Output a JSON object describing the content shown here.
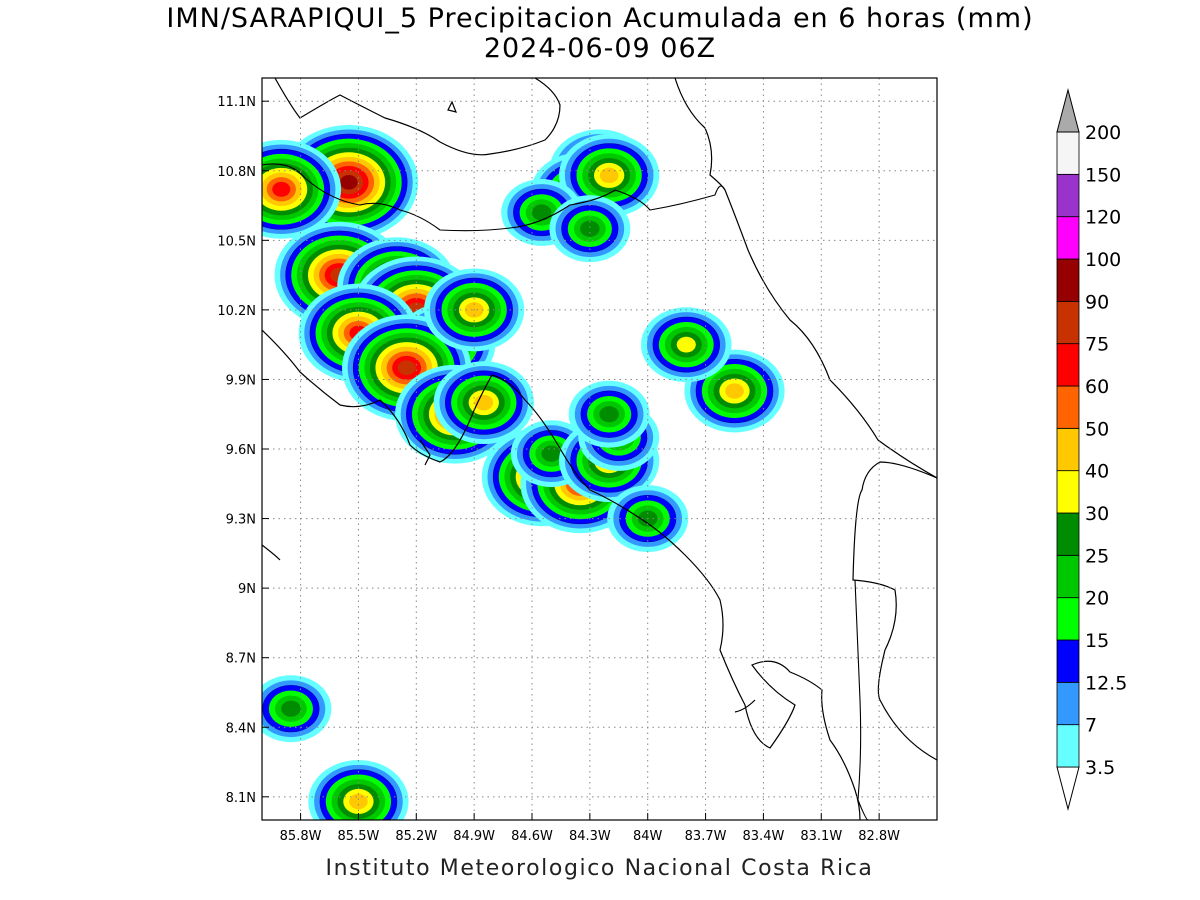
{
  "title": {
    "line1": "IMN/SARAPIQUI_5 Precipitacion Acumulada en 6 horas (mm)",
    "line2": "2024-06-09 06Z"
  },
  "footer": "Instituto Meteorologico Nacional Costa Rica",
  "map": {
    "lon_range": [
      -86.0,
      -82.5
    ],
    "lat_range": [
      8.0,
      11.2
    ],
    "lat_labels": [
      "11.1N",
      "10.8N",
      "10.5N",
      "10.2N",
      "9.9N",
      "9.6N",
      "9.3N",
      "9N",
      "8.7N",
      "8.4N",
      "8.1N"
    ],
    "lon_labels": [
      "85.8W",
      "85.5W",
      "85.2W",
      "84.9W",
      "84.6W",
      "84.3W",
      "84W",
      "83.7W",
      "83.4W",
      "83.1W",
      "82.8W"
    ],
    "grid": "dotted"
  },
  "colorbar": {
    "levels": [
      "3.5",
      "7",
      "12.5",
      "15",
      "20",
      "25",
      "30",
      "40",
      "50",
      "60",
      "75",
      "90",
      "100",
      "120",
      "150",
      "200"
    ],
    "colors": [
      "#66ffff",
      "#3399ff",
      "#0000ff",
      "#00ff00",
      "#00c800",
      "#008c00",
      "#ffff00",
      "#ffc800",
      "#ff6400",
      "#ff0000",
      "#c83200",
      "#960000",
      "#ff00ff",
      "#9933cc",
      "#f5f5f5",
      "#aaaaaa"
    ]
  },
  "precip_cells": [
    {
      "lon": -85.55,
      "lat": 10.75,
      "peak": "90"
    },
    {
      "lon": -85.9,
      "lat": 10.72,
      "peak": "60"
    },
    {
      "lon": -85.6,
      "lat": 10.35,
      "peak": "75"
    },
    {
      "lon": -85.3,
      "lat": 10.3,
      "peak": "60"
    },
    {
      "lon": -85.2,
      "lat": 10.2,
      "peak": "75"
    },
    {
      "lon": -85.5,
      "lat": 10.1,
      "peak": "60"
    },
    {
      "lon": -85.05,
      "lat": 10.05,
      "peak": "40"
    },
    {
      "lon": -85.25,
      "lat": 9.95,
      "peak": "75"
    },
    {
      "lon": -84.9,
      "lat": 10.2,
      "peak": "40"
    },
    {
      "lon": -85.0,
      "lat": 9.75,
      "peak": "60"
    },
    {
      "lon": -84.85,
      "lat": 9.8,
      "peak": "40"
    },
    {
      "lon": -84.55,
      "lat": 9.48,
      "peak": "60"
    },
    {
      "lon": -84.35,
      "lat": 9.45,
      "peak": "60"
    },
    {
      "lon": -84.5,
      "lat": 9.58,
      "peak": "25"
    },
    {
      "lon": -84.25,
      "lat": 10.8,
      "peak": "40"
    },
    {
      "lon": -84.35,
      "lat": 10.7,
      "peak": "40"
    },
    {
      "lon": -84.2,
      "lat": 10.78,
      "peak": "40"
    },
    {
      "lon": -84.55,
      "lat": 10.62,
      "peak": "25"
    },
    {
      "lon": -84.3,
      "lat": 10.55,
      "peak": "25"
    },
    {
      "lon": -84.2,
      "lat": 9.55,
      "peak": "40"
    },
    {
      "lon": -84.15,
      "lat": 9.65,
      "peak": "25"
    },
    {
      "lon": -84.2,
      "lat": 9.75,
      "peak": "25"
    },
    {
      "lon": -83.55,
      "lat": 9.85,
      "peak": "40"
    },
    {
      "lon": -83.8,
      "lat": 10.05,
      "peak": "30"
    },
    {
      "lon": -85.5,
      "lat": 8.08,
      "peak": "40"
    },
    {
      "lon": -85.85,
      "lat": 8.48,
      "peak": "25"
    },
    {
      "lon": -84.0,
      "lat": 9.3,
      "peak": "25"
    }
  ]
}
